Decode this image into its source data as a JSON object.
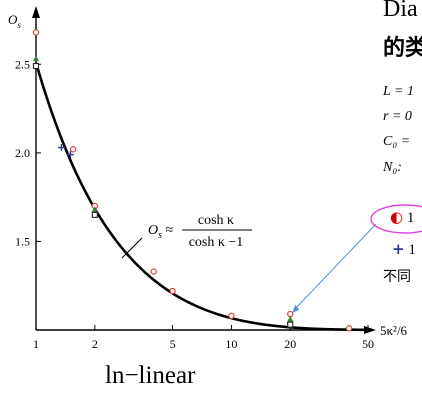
{
  "right_panel": {
    "title_line1": "Dia",
    "title_line2": "的类",
    "params": [
      "L = 1",
      "r = 0",
      "C₀ =",
      "N₀:"
    ],
    "legend_items": [
      {
        "marker": "◐",
        "text": "1",
        "color": "#d40000"
      },
      {
        "marker": "+",
        "text": "1",
        "color": "#2b3a8f"
      }
    ],
    "footer_text": "不同"
  },
  "caption": "ln−linear",
  "chart_data": {
    "type": "scatter",
    "title": "",
    "xlabel": "5κ²/6",
    "ylabel": "O_s",
    "xscale": "log",
    "xlim": [
      1,
      50
    ],
    "ylim": [
      1.0,
      2.75
    ],
    "xticks": [
      1,
      2,
      5,
      10,
      20,
      50
    ],
    "xtick_labels": [
      "1",
      "2",
      "5",
      "10",
      "20",
      "50"
    ],
    "yticks": [
      1.5,
      2.0,
      2.5
    ],
    "ytick_labels": [
      "1.5",
      "2.0",
      "2.5"
    ],
    "curve_label": "O_s ≈ cosh κ / (cosh κ − 1)",
    "curve_formula": {
      "lhs": "O",
      "sub": "s",
      "approx": "≈",
      "numerator": "cosh κ",
      "denominator": "cosh κ −1"
    },
    "series": [
      {
        "marker": "circle",
        "color": "#e04040",
        "x": [
          1.0,
          1.55,
          2.0,
          4.0,
          5.0,
          10.0,
          20.0,
          20.0,
          40.0
        ],
        "y": [
          2.68,
          2.02,
          1.7,
          1.33,
          1.22,
          1.08,
          1.09,
          1.04,
          1.01
        ]
      },
      {
        "marker": "triangle",
        "color": "#2e7d2e",
        "x": [
          1.0,
          2.0,
          20.0
        ],
        "y": [
          2.53,
          1.68,
          1.06
        ]
      },
      {
        "marker": "square",
        "color": "#222222",
        "x": [
          1.0,
          2.0,
          20.0
        ],
        "y": [
          2.49,
          1.65,
          1.03
        ]
      },
      {
        "marker": "plus",
        "color": "#2b3a8f",
        "x": [
          1.35,
          1.5
        ],
        "y": [
          2.03,
          1.99
        ]
      }
    ],
    "annotation_arrow": {
      "from": "legend-circle-item",
      "to": "x=20 points"
    }
  }
}
